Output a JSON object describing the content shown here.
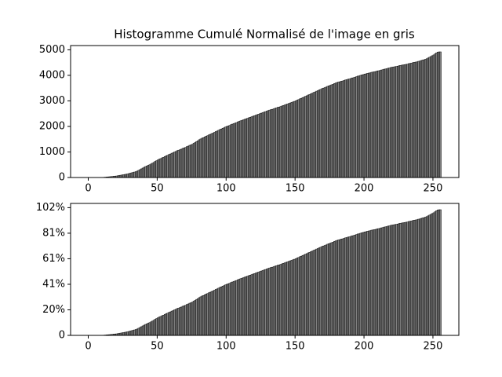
{
  "chart_data": [
    {
      "type": "histogram",
      "title": "Histogramme Cumulé Normalisé de l'image en gris",
      "bins": [
        0,
        1,
        2,
        3,
        4,
        5,
        6,
        7,
        8,
        9,
        10,
        11,
        12,
        13,
        14,
        15,
        16,
        17,
        18,
        19,
        20,
        21,
        22,
        23,
        24,
        25,
        26,
        27,
        28,
        29,
        30,
        31,
        32,
        33,
        34,
        35,
        36,
        37,
        38,
        39,
        40,
        41,
        42,
        43,
        44,
        45,
        46,
        47,
        48,
        49,
        50,
        51,
        52,
        53,
        54,
        55,
        56,
        57,
        58,
        59,
        60,
        61,
        62,
        63,
        64,
        65,
        66,
        67,
        68,
        69,
        70,
        71,
        72,
        73,
        74,
        75,
        76,
        77,
        78,
        79,
        80,
        81,
        82,
        83,
        84,
        85,
        86,
        87,
        88,
        89,
        90,
        91,
        92,
        93,
        94,
        95,
        96,
        97,
        98,
        99,
        100,
        101,
        102,
        103,
        104,
        105,
        106,
        107,
        108,
        109,
        110,
        111,
        112,
        113,
        114,
        115,
        116,
        117,
        118,
        119,
        120,
        121,
        122,
        123,
        124,
        125,
        126,
        127,
        128,
        129,
        130,
        131,
        132,
        133,
        134,
        135,
        136,
        137,
        138,
        139,
        140,
        141,
        142,
        143,
        144,
        145,
        146,
        147,
        148,
        149,
        150,
        151,
        152,
        153,
        154,
        155,
        156,
        157,
        158,
        159,
        160,
        161,
        162,
        163,
        164,
        165,
        166,
        167,
        168,
        169,
        170,
        171,
        172,
        173,
        174,
        175,
        176,
        177,
        178,
        179,
        180,
        181,
        182,
        183,
        184,
        185,
        186,
        187,
        188,
        189,
        190,
        191,
        192,
        193,
        194,
        195,
        196,
        197,
        198,
        199,
        200,
        201,
        202,
        203,
        204,
        205,
        206,
        207,
        208,
        209,
        210,
        211,
        212,
        213,
        214,
        215,
        216,
        217,
        218,
        219,
        220,
        221,
        222,
        223,
        224,
        225,
        226,
        227,
        228,
        229,
        230,
        231,
        232,
        233,
        234,
        235,
        236,
        237,
        238,
        239,
        240,
        241,
        242,
        243,
        244,
        245,
        246,
        247,
        248,
        249,
        250,
        251,
        252,
        253,
        254,
        255,
        256
      ],
      "values": [
        0,
        0,
        0,
        0,
        0,
        0,
        0,
        0,
        0,
        0,
        5,
        10,
        15,
        20,
        25,
        30,
        35,
        40,
        50,
        55,
        60,
        70,
        80,
        90,
        100,
        110,
        120,
        130,
        140,
        155,
        170,
        185,
        200,
        215,
        230,
        250,
        280,
        310,
        340,
        370,
        400,
        430,
        450,
        480,
        500,
        530,
        560,
        590,
        630,
        660,
        690,
        720,
        740,
        770,
        790,
        820,
        850,
        870,
        900,
        920,
        950,
        970,
        1000,
        1020,
        1050,
        1070,
        1090,
        1110,
        1140,
        1160,
        1180,
        1210,
        1230,
        1260,
        1280,
        1300,
        1340,
        1370,
        1410,
        1440,
        1480,
        1510,
        1540,
        1560,
        1590,
        1620,
        1640,
        1670,
        1690,
        1720,
        1740,
        1770,
        1800,
        1820,
        1850,
        1880,
        1900,
        1930,
        1950,
        1980,
        2000,
        2020,
        2040,
        2070,
        2090,
        2110,
        2130,
        2150,
        2180,
        2200,
        2220,
        2240,
        2260,
        2280,
        2300,
        2320,
        2340,
        2360,
        2380,
        2400,
        2420,
        2440,
        2460,
        2480,
        2500,
        2520,
        2540,
        2560,
        2580,
        2600,
        2620,
        2640,
        2660,
        2670,
        2690,
        2710,
        2730,
        2750,
        2760,
        2780,
        2800,
        2820,
        2840,
        2860,
        2880,
        2900,
        2920,
        2940,
        2960,
        2980,
        3000,
        3030,
        3050,
        3080,
        3100,
        3130,
        3150,
        3180,
        3200,
        3230,
        3250,
        3280,
        3300,
        3330,
        3350,
        3380,
        3400,
        3430,
        3450,
        3480,
        3500,
        3520,
        3540,
        3570,
        3590,
        3610,
        3630,
        3650,
        3680,
        3700,
        3720,
        3740,
        3750,
        3770,
        3780,
        3800,
        3820,
        3830,
        3850,
        3860,
        3880,
        3900,
        3910,
        3930,
        3950,
        3970,
        3980,
        4000,
        4020,
        4030,
        4050,
        4060,
        4080,
        4090,
        4100,
        4120,
        4130,
        4140,
        4150,
        4170,
        4180,
        4190,
        4210,
        4220,
        4240,
        4250,
        4260,
        4280,
        4290,
        4310,
        4320,
        4330,
        4340,
        4350,
        4360,
        4380,
        4390,
        4400,
        4410,
        4420,
        4430,
        4440,
        4460,
        4470,
        4480,
        4500,
        4510,
        4520,
        4530,
        4550,
        4560,
        4580,
        4600,
        4610,
        4630,
        4650,
        4680,
        4710,
        4740,
        4770,
        4800,
        4840,
        4880,
        4910,
        4920,
        4920
      ],
      "color": "#808080",
      "edgecolor": "#000000",
      "xlim": [
        -12.8,
        268.8
      ],
      "xticks": [
        0,
        50,
        100,
        150,
        200,
        250
      ],
      "ylim": [
        0,
        5166
      ],
      "yticks": [
        0,
        1000,
        2000,
        3000,
        4000,
        5000
      ]
    },
    {
      "type": "histogram",
      "bins": [
        0,
        1,
        2,
        3,
        4,
        5,
        6,
        7,
        8,
        9,
        10,
        11,
        12,
        13,
        14,
        15,
        16,
        17,
        18,
        19,
        20,
        21,
        22,
        23,
        24,
        25,
        26,
        27,
        28,
        29,
        30,
        31,
        32,
        33,
        34,
        35,
        36,
        37,
        38,
        39,
        40,
        41,
        42,
        43,
        44,
        45,
        46,
        47,
        48,
        49,
        50,
        51,
        52,
        53,
        54,
        55,
        56,
        57,
        58,
        59,
        60,
        61,
        62,
        63,
        64,
        65,
        66,
        67,
        68,
        69,
        70,
        71,
        72,
        73,
        74,
        75,
        76,
        77,
        78,
        79,
        80,
        81,
        82,
        83,
        84,
        85,
        86,
        87,
        88,
        89,
        90,
        91,
        92,
        93,
        94,
        95,
        96,
        97,
        98,
        99,
        100,
        101,
        102,
        103,
        104,
        105,
        106,
        107,
        108,
        109,
        110,
        111,
        112,
        113,
        114,
        115,
        116,
        117,
        118,
        119,
        120,
        121,
        122,
        123,
        124,
        125,
        126,
        127,
        128,
        129,
        130,
        131,
        132,
        133,
        134,
        135,
        136,
        137,
        138,
        139,
        140,
        141,
        142,
        143,
        144,
        145,
        146,
        147,
        148,
        149,
        150,
        151,
        152,
        153,
        154,
        155,
        156,
        157,
        158,
        159,
        160,
        161,
        162,
        163,
        164,
        165,
        166,
        167,
        168,
        169,
        170,
        171,
        172,
        173,
        174,
        175,
        176,
        177,
        178,
        179,
        180,
        181,
        182,
        183,
        184,
        185,
        186,
        187,
        188,
        189,
        190,
        191,
        192,
        193,
        194,
        195,
        196,
        197,
        198,
        199,
        200,
        201,
        202,
        203,
        204,
        205,
        206,
        207,
        208,
        209,
        210,
        211,
        212,
        213,
        214,
        215,
        216,
        217,
        218,
        219,
        220,
        221,
        222,
        223,
        224,
        225,
        226,
        227,
        228,
        229,
        230,
        231,
        232,
        233,
        234,
        235,
        236,
        237,
        238,
        239,
        240,
        241,
        242,
        243,
        244,
        245,
        246,
        247,
        248,
        249,
        250,
        251,
        252,
        253,
        254,
        255,
        256
      ],
      "values": [
        0,
        0,
        0,
        0,
        0,
        0,
        0,
        0,
        0,
        0,
        5,
        10,
        15,
        20,
        25,
        30,
        35,
        40,
        50,
        55,
        60,
        70,
        80,
        90,
        100,
        110,
        120,
        130,
        140,
        155,
        170,
        185,
        200,
        215,
        230,
        250,
        280,
        310,
        340,
        370,
        400,
        430,
        450,
        480,
        500,
        530,
        560,
        590,
        630,
        660,
        690,
        720,
        740,
        770,
        790,
        820,
        850,
        870,
        900,
        920,
        950,
        970,
        1000,
        1020,
        1050,
        1070,
        1090,
        1110,
        1140,
        1160,
        1180,
        1210,
        1230,
        1260,
        1280,
        1300,
        1340,
        1370,
        1410,
        1440,
        1480,
        1510,
        1540,
        1560,
        1590,
        1620,
        1640,
        1670,
        1690,
        1720,
        1740,
        1770,
        1800,
        1820,
        1850,
        1880,
        1900,
        1930,
        1950,
        1980,
        2000,
        2020,
        2040,
        2070,
        2090,
        2110,
        2130,
        2150,
        2180,
        2200,
        2220,
        2240,
        2260,
        2280,
        2300,
        2320,
        2340,
        2360,
        2380,
        2400,
        2420,
        2440,
        2460,
        2480,
        2500,
        2520,
        2540,
        2560,
        2580,
        2600,
        2620,
        2640,
        2660,
        2670,
        2690,
        2710,
        2730,
        2750,
        2760,
        2780,
        2800,
        2820,
        2840,
        2860,
        2880,
        2900,
        2920,
        2940,
        2960,
        2980,
        3000,
        3030,
        3050,
        3080,
        3100,
        3130,
        3150,
        3180,
        3200,
        3230,
        3250,
        3280,
        3300,
        3330,
        3350,
        3380,
        3400,
        3430,
        3450,
        3480,
        3500,
        3520,
        3540,
        3570,
        3590,
        3610,
        3630,
        3650,
        3680,
        3700,
        3720,
        3740,
        3750,
        3770,
        3780,
        3800,
        3820,
        3830,
        3850,
        3860,
        3880,
        3900,
        3910,
        3930,
        3950,
        3970,
        3980,
        4000,
        4020,
        4030,
        4050,
        4060,
        4080,
        4090,
        4100,
        4120,
        4130,
        4140,
        4150,
        4170,
        4180,
        4190,
        4210,
        4220,
        4240,
        4250,
        4260,
        4280,
        4290,
        4310,
        4320,
        4330,
        4340,
        4350,
        4360,
        4380,
        4390,
        4400,
        4410,
        4420,
        4430,
        4440,
        4460,
        4470,
        4480,
        4500,
        4510,
        4520,
        4530,
        4550,
        4560,
        4580,
        4600,
        4610,
        4630,
        4650,
        4680,
        4710,
        4740,
        4770,
        4800,
        4840,
        4880,
        4910,
        4920,
        4920
      ],
      "color": "#808080",
      "edgecolor": "#000000",
      "xlim": [
        -12.8,
        268.8
      ],
      "xticks": [
        0,
        50,
        100,
        150,
        200,
        250
      ],
      "ylim": [
        0,
        5166
      ],
      "yticks": [
        0,
        {
          "value": 1000,
          "label": "20%"
        },
        {
          "value": 2000,
          "label": "41%"
        },
        {
          "value": 3000,
          "label": "61%"
        },
        {
          "value": 4000,
          "label": "81%"
        },
        {
          "value": 5000,
          "label": "102%"
        }
      ]
    }
  ]
}
